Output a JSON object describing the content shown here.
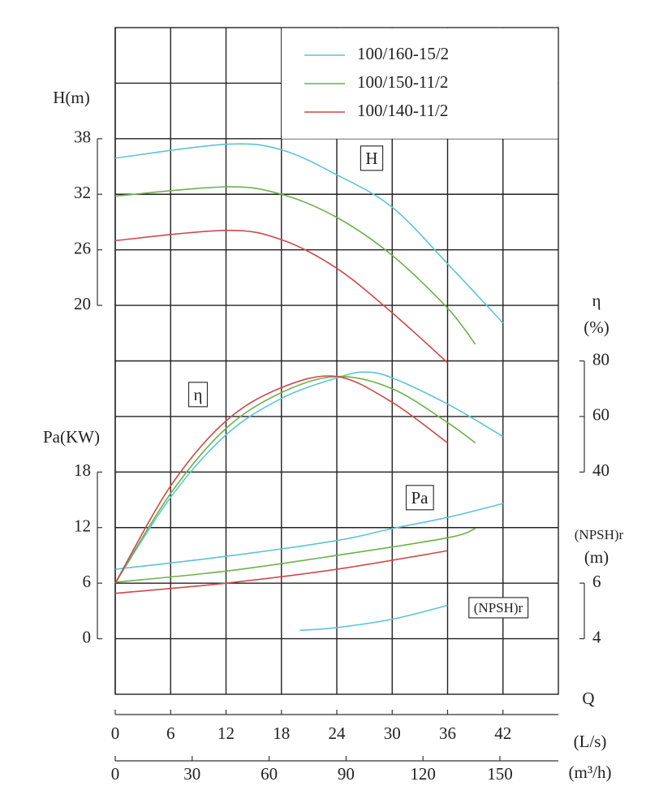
{
  "chart_data": {
    "type": "line",
    "x_title": "Q",
    "x_axes": [
      {
        "label": "(L/s)",
        "lim": [
          0,
          48
        ],
        "ticks": [
          0,
          6,
          12,
          18,
          24,
          30,
          36,
          42
        ]
      },
      {
        "label": "(m³/h)",
        "lim": [
          0,
          172.8
        ],
        "ticks": [
          0,
          30,
          60,
          90,
          120,
          150
        ]
      }
    ],
    "y_axes": {
      "H": {
        "label": "H(m)",
        "tag": "H",
        "side": "left",
        "lim": [
          -22,
          50
        ],
        "ticks": [
          20,
          26,
          32,
          38
        ]
      },
      "eta": {
        "label": "η",
        "unit": "(%)",
        "tag": "η",
        "side": "right",
        "lim": [
          -40,
          200
        ],
        "ticks": [
          40,
          60,
          80
        ]
      },
      "Pa": {
        "label": "Pa(KW)",
        "tag": "Pa",
        "side": "left",
        "lim": [
          -6,
          66
        ],
        "ticks": [
          0,
          6,
          12,
          18
        ]
      },
      "NPSH": {
        "label": "(NPSH)r",
        "unit": "(m)",
        "tag": "(NPSH)r",
        "side": "right",
        "lim": [
          2,
          26
        ],
        "ticks": [
          4,
          6
        ]
      }
    },
    "grid": true,
    "series": [
      {
        "name": "100/160-15/2",
        "color": "#5bc4d8",
        "curves": [
          {
            "axis": "H",
            "x": [
              0,
              12,
              18,
              24,
              30,
              36,
              42
            ],
            "values": [
              35.9,
              37.4,
              36.8,
              34.1,
              30.6,
              24.5,
              18.1
            ]
          },
          {
            "axis": "eta",
            "x": [
              0,
              6,
              12,
              18,
              24,
              27,
              30,
              36,
              42
            ],
            "values": [
              0,
              30.9,
              53.4,
              66.5,
              73.9,
              76,
              73.9,
              64.5,
              52.8
            ]
          },
          {
            "axis": "Pa",
            "x": [
              0,
              12,
              24,
              30,
              36,
              42
            ],
            "values": [
              7.5,
              8.9,
              10.6,
              11.9,
              13.1,
              14.6
            ]
          },
          {
            "axis": "NPSH",
            "x": [
              20,
              24,
              30,
              36
            ],
            "values": [
              4.3,
              4.4,
              4.7,
              5.2
            ]
          }
        ]
      },
      {
        "name": "100/150-11/2",
        "color": "#6cb24a",
        "curves": [
          {
            "axis": "H",
            "x": [
              0,
              12,
              18,
              24,
              30,
              36,
              39
            ],
            "values": [
              31.8,
              32.8,
              32,
              29.5,
              25.4,
              19.7,
              15.8
            ]
          },
          {
            "axis": "eta",
            "x": [
              0,
              6,
              12,
              18,
              24,
              30,
              36,
              39
            ],
            "values": [
              0,
              32.3,
              55.7,
              68.6,
              74.4,
              70,
              57.8,
              50.5
            ]
          },
          {
            "axis": "Pa",
            "x": [
              0,
              12,
              24,
              36,
              39
            ],
            "values": [
              6.1,
              7.3,
              9,
              10.9,
              11.9
            ]
          }
        ]
      },
      {
        "name": "100/140-11/2",
        "color": "#d0484a",
        "curves": [
          {
            "axis": "H",
            "x": [
              0,
              12,
              18,
              24,
              30,
              36
            ],
            "values": [
              27,
              28.1,
              27.1,
              24,
              19.2,
              13.8
            ]
          },
          {
            "axis": "eta",
            "x": [
              0,
              6,
              12,
              18,
              24,
              30,
              36
            ],
            "values": [
              0,
              35,
              58.4,
              70.4,
              74.4,
              65.1,
              50.5
            ]
          },
          {
            "axis": "Pa",
            "x": [
              0,
              12,
              24,
              36
            ],
            "values": [
              4.9,
              6,
              7.5,
              9.5
            ]
          }
        ]
      }
    ]
  }
}
